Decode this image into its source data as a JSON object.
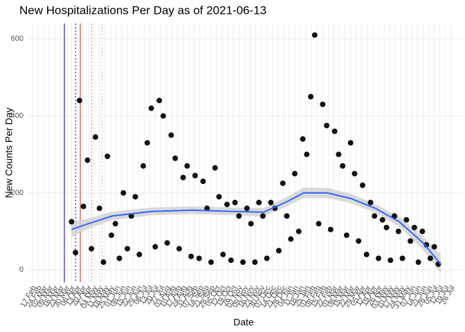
{
  "chart_data": {
    "type": "scatter",
    "title": "New Hospitalizations Per Day as of 2021-06-13",
    "x_label": "Date",
    "y_label": "New Counts Per Day",
    "color": "#111111",
    "grid": true,
    "xlim": [
      -6,
      539
    ],
    "ylim": [
      -32,
      640
    ],
    "yticks": [
      0,
      200,
      400,
      600
    ],
    "xticks": [
      {
        "value": 0,
        "label": "17 Feb"
      },
      {
        "value": 7,
        "label": "24 Feb"
      },
      {
        "value": 14,
        "label": "02 Mar"
      },
      {
        "value": 21,
        "label": "09 Mar"
      },
      {
        "value": 28,
        "label": "16 Mar"
      },
      {
        "value": 35,
        "label": "23 Mar"
      },
      {
        "value": 42,
        "label": "30 Mar"
      },
      {
        "value": 49,
        "label": "06 Apr"
      },
      {
        "value": 56,
        "label": "13 Apr"
      },
      {
        "value": 63,
        "label": "20 Apr"
      },
      {
        "value": 70,
        "label": "27 Apr"
      },
      {
        "value": 77,
        "label": "04 May"
      },
      {
        "value": 84,
        "label": "11 May"
      },
      {
        "value": 91,
        "label": "18 May"
      },
      {
        "value": 98,
        "label": "25 May"
      },
      {
        "value": 105,
        "label": "01 Jun"
      },
      {
        "value": 112,
        "label": "08 Jun"
      },
      {
        "value": 119,
        "label": "15 Jun"
      },
      {
        "value": 126,
        "label": "22 Jun"
      },
      {
        "value": 133,
        "label": "29 Jun"
      },
      {
        "value": 140,
        "label": "06 Jul"
      },
      {
        "value": 147,
        "label": "13 Jul"
      },
      {
        "value": 154,
        "label": "20 Jul"
      },
      {
        "value": 161,
        "label": "27 Jul"
      },
      {
        "value": 168,
        "label": "03 Aug"
      },
      {
        "value": 175,
        "label": "10 Aug"
      },
      {
        "value": 182,
        "label": "17 Aug"
      },
      {
        "value": 189,
        "label": "24 Aug"
      },
      {
        "value": 196,
        "label": "31 Aug"
      },
      {
        "value": 203,
        "label": "07 Sep"
      },
      {
        "value": 210,
        "label": "14 Sep"
      },
      {
        "value": 217,
        "label": "21 Sep"
      },
      {
        "value": 224,
        "label": "28 Sep"
      },
      {
        "value": 231,
        "label": "05 Oct"
      },
      {
        "value": 238,
        "label": "12 Oct"
      },
      {
        "value": 245,
        "label": "19 Oct"
      },
      {
        "value": 252,
        "label": "26 Oct"
      },
      {
        "value": 259,
        "label": "02 Nov"
      },
      {
        "value": 266,
        "label": "09 Nov"
      },
      {
        "value": 273,
        "label": "16 Nov"
      },
      {
        "value": 280,
        "label": "23 Nov"
      },
      {
        "value": 287,
        "label": "30 Nov"
      },
      {
        "value": 294,
        "label": "07 Dec"
      },
      {
        "value": 301,
        "label": "14 Dec"
      },
      {
        "value": 308,
        "label": "21 Dec"
      },
      {
        "value": 315,
        "label": "28 Dec"
      },
      {
        "value": 322,
        "label": "04 Jan"
      },
      {
        "value": 329,
        "label": "11 Jan"
      },
      {
        "value": 336,
        "label": "18 Jan"
      },
      {
        "value": 343,
        "label": "25 Jan"
      },
      {
        "value": 350,
        "label": "01 Feb"
      },
      {
        "value": 357,
        "label": "08 Feb"
      },
      {
        "value": 364,
        "label": "15 Feb"
      },
      {
        "value": 371,
        "label": "22 Feb"
      },
      {
        "value": 378,
        "label": "01 Mar"
      },
      {
        "value": 385,
        "label": "08 Mar"
      },
      {
        "value": 392,
        "label": "15 Mar"
      },
      {
        "value": 399,
        "label": "22 Mar"
      },
      {
        "value": 406,
        "label": "29 Mar"
      },
      {
        "value": 413,
        "label": "05 Apr"
      },
      {
        "value": 420,
        "label": "12 Apr"
      },
      {
        "value": 427,
        "label": "19 Apr"
      },
      {
        "value": 434,
        "label": "26 Apr"
      },
      {
        "value": 441,
        "label": "03 May"
      },
      {
        "value": 448,
        "label": "10 May"
      },
      {
        "value": 455,
        "label": "17 May"
      },
      {
        "value": 462,
        "label": "24 May"
      },
      {
        "value": 469,
        "label": "31 May"
      },
      {
        "value": 476,
        "label": "07 Jun"
      },
      {
        "value": 483,
        "label": "14 Jun"
      },
      {
        "value": 490,
        "label": "21 Jun"
      },
      {
        "value": 497,
        "label": "28 Jun"
      },
      {
        "value": 504,
        "label": "05 Jul"
      },
      {
        "value": 511,
        "label": "12 Jul"
      },
      {
        "value": 518,
        "label": "19 Jul"
      },
      {
        "value": 525,
        "label": "26 Jul"
      }
    ],
    "x": [
      49,
      54,
      59,
      64,
      69,
      74,
      79,
      84,
      89,
      94,
      99,
      104,
      109,
      114,
      119,
      124,
      129,
      134,
      139,
      144,
      149,
      154,
      159,
      164,
      169,
      174,
      179,
      184,
      189,
      194,
      199,
      204,
      209,
      214,
      219,
      224,
      229,
      234,
      239,
      244,
      249,
      254,
      259,
      264,
      269,
      274,
      279,
      284,
      289,
      294,
      299,
      304,
      309,
      314,
      319,
      324,
      329,
      334,
      339,
      344,
      349,
      354,
      359,
      364,
      369,
      374,
      379,
      384,
      389,
      394,
      399,
      404,
      409,
      414,
      419,
      424,
      429,
      434,
      439,
      444,
      449,
      454,
      459,
      464,
      469,
      474,
      479,
      484,
      489,
      494,
      499,
      504,
      509
    ],
    "values": [
      125,
      45,
      440,
      165,
      285,
      55,
      345,
      160,
      20,
      295,
      90,
      120,
      30,
      200,
      55,
      140,
      190,
      40,
      270,
      330,
      420,
      60,
      440,
      400,
      70,
      350,
      290,
      55,
      240,
      270,
      35,
      245,
      30,
      230,
      160,
      20,
      265,
      190,
      40,
      170,
      25,
      175,
      140,
      20,
      160,
      120,
      20,
      175,
      140,
      30,
      175,
      160,
      50,
      225,
      140,
      80,
      250,
      100,
      340,
      300,
      450,
      610,
      120,
      430,
      375,
      105,
      360,
      300,
      270,
      90,
      330,
      250,
      75,
      220,
      40,
      175,
      140,
      30,
      130,
      110,
      25,
      140,
      100,
      30,
      130,
      75,
      110,
      20,
      100,
      65,
      30,
      60,
      15
    ],
    "smooth": {
      "color": "#3366ff",
      "band_color": "#d3d3d3",
      "x": [
        49,
        70,
        100,
        150,
        200,
        250,
        290,
        320,
        340,
        370,
        400,
        430,
        460,
        490,
        512
      ],
      "y": [
        105,
        120,
        140,
        152,
        155,
        152,
        150,
        178,
        200,
        200,
        185,
        160,
        125,
        70,
        15
      ],
      "lower": [
        85,
        107,
        129,
        142,
        145,
        142,
        139,
        166,
        186,
        187,
        173,
        149,
        112,
        52,
        -10
      ],
      "upper": [
        125,
        133,
        151,
        162,
        165,
        162,
        161,
        190,
        214,
        213,
        197,
        171,
        138,
        88,
        40
      ]
    },
    "reference_lines": [
      {
        "x": 40,
        "color": "#00008b",
        "dash": "solid"
      },
      {
        "x": 54,
        "color": "#00008b",
        "dash": "dotted"
      },
      {
        "x": 60,
        "color": "#b22222",
        "dash": "solid"
      },
      {
        "x": 74,
        "color": "#ff6666",
        "dash": "dotted"
      },
      {
        "x": 87,
        "color": "#ff9999",
        "dash": "dotted"
      }
    ]
  }
}
